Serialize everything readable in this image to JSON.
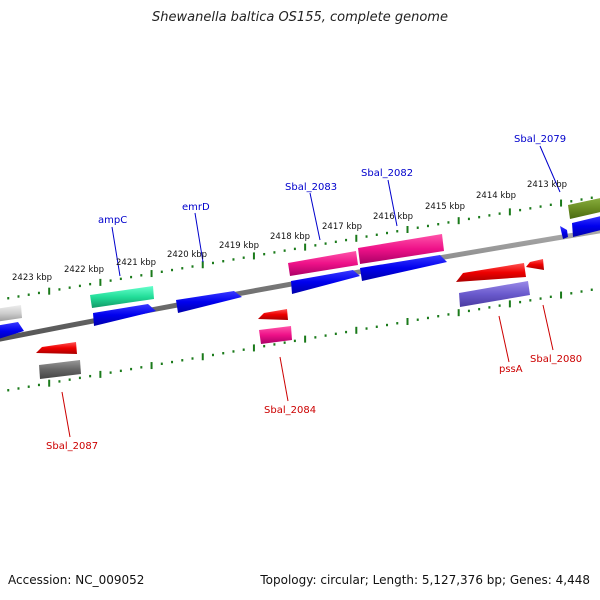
{
  "title": "Shewanella baltica OS155, complete genome",
  "footer": {
    "accession": "Accession: NC_009052",
    "summary": "Topology: circular; Length: 5,127,376 bp; Genes: 4,448"
  },
  "ticks": [
    "2413 kbp",
    "2414 kbp",
    "2415 kbp",
    "2416 kbp",
    "2417 kbp",
    "2418 kbp",
    "2419 kbp",
    "2420 kbp",
    "2421 kbp",
    "2422 kbp",
    "2423 kbp"
  ],
  "genes_top": [
    "Sbal_2079",
    "Sbal_2082",
    "Sbal_2083",
    "emrD",
    "ampC"
  ],
  "genes_bottom": [
    "Sbal_2080",
    "pssA",
    "Sbal_2084",
    "Sbal_2087"
  ],
  "colors": {
    "forward_label": "#0000cc",
    "reverse_label": "#cc0000",
    "tick": "#1a7a1a",
    "backbone": "#808080"
  }
}
